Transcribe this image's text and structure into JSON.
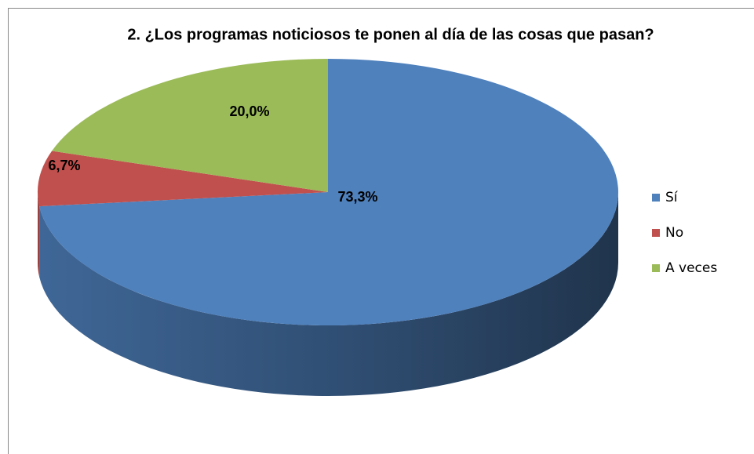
{
  "chart_data": {
    "type": "pie",
    "title": "2. ¿Los programas noticiosos te ponen al día de las cosas que pasan?",
    "categories": [
      "Sí",
      "No",
      "A veces"
    ],
    "values": [
      73.3,
      6.7,
      20.0
    ],
    "value_labels": [
      "73,3%",
      "6,7%",
      "20,0%"
    ],
    "colors": [
      "#4f81bd",
      "#c0504d",
      "#9bbb59"
    ],
    "legend": "right"
  }
}
